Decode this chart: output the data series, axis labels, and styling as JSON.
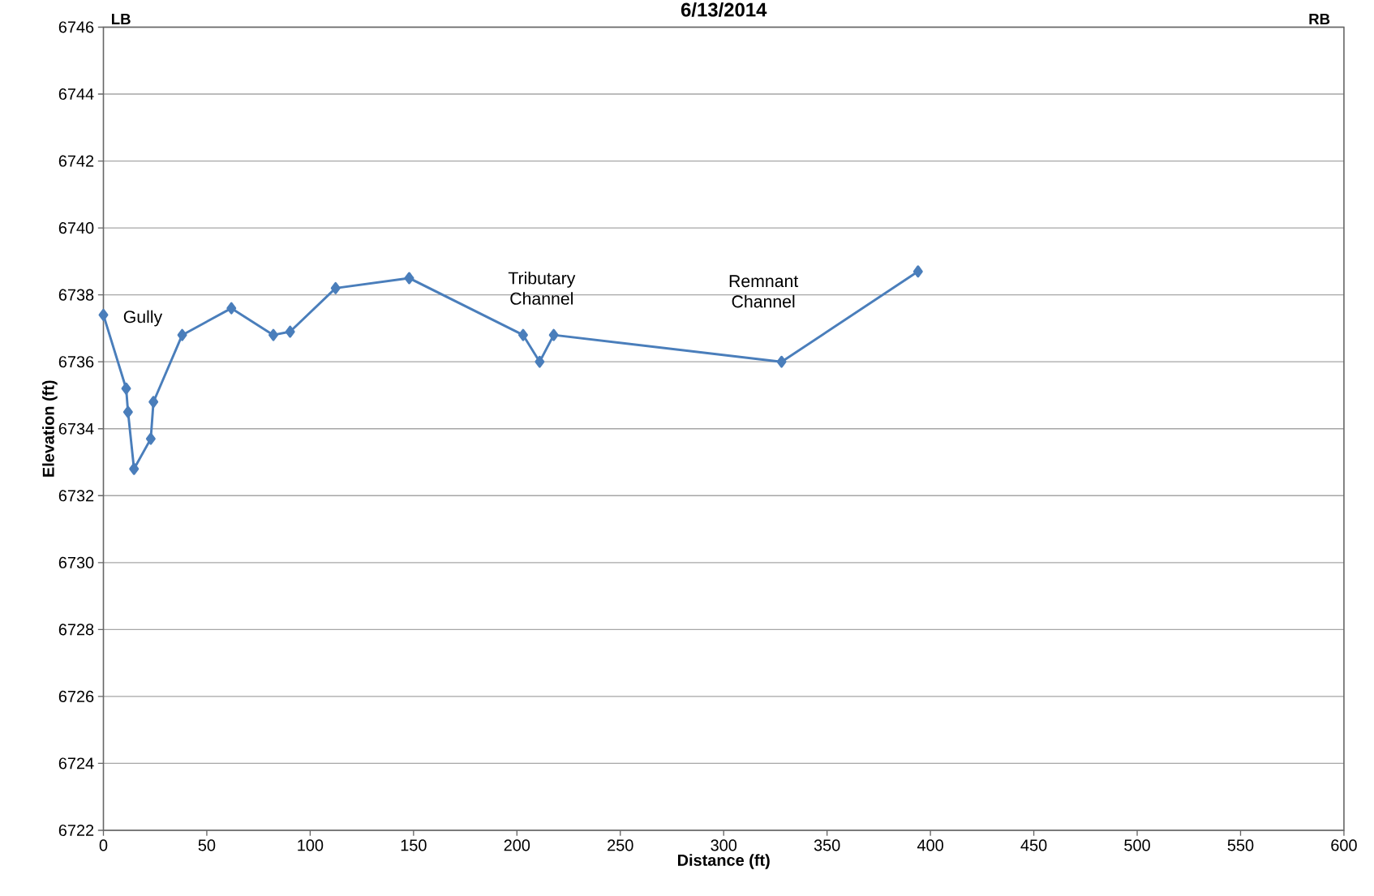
{
  "chart_data": {
    "type": "line",
    "title": "6/13/2014",
    "xlabel": "Distance (ft)",
    "ylabel": "Elevation (ft)",
    "x": [
      0,
      11,
      11.9,
      14.8,
      22.9,
      24.2,
      38.1,
      61.9,
      82.2,
      90.3,
      112.3,
      147.9,
      203,
      211,
      217.8,
      328,
      394
    ],
    "series": [
      {
        "color": "#4a7ebb",
        "values": [
          6737.4,
          6735.2,
          6734.5,
          6732.8,
          6733.7,
          6734.8,
          6736.8,
          6737.6,
          6736.8,
          6736.9,
          6738.2,
          6738.5,
          6736.8,
          6736.0,
          6736.8,
          6736.0,
          6738.7
        ]
      }
    ],
    "xlim": [
      0,
      600
    ],
    "xticks": [
      0,
      50,
      100,
      150,
      200,
      250,
      300,
      350,
      400,
      450,
      500,
      550,
      600
    ],
    "ylim": [
      6722,
      6746
    ],
    "yticks": [
      6722,
      6724,
      6726,
      6728,
      6730,
      6732,
      6734,
      6736,
      6738,
      6740,
      6742,
      6744,
      6746
    ],
    "grid": "y",
    "marker": "diamond",
    "line_style": "solid",
    "annotations": [
      "LB",
      "RB",
      "Gully",
      "Tributary Channel",
      "Remnant Channel"
    ]
  }
}
